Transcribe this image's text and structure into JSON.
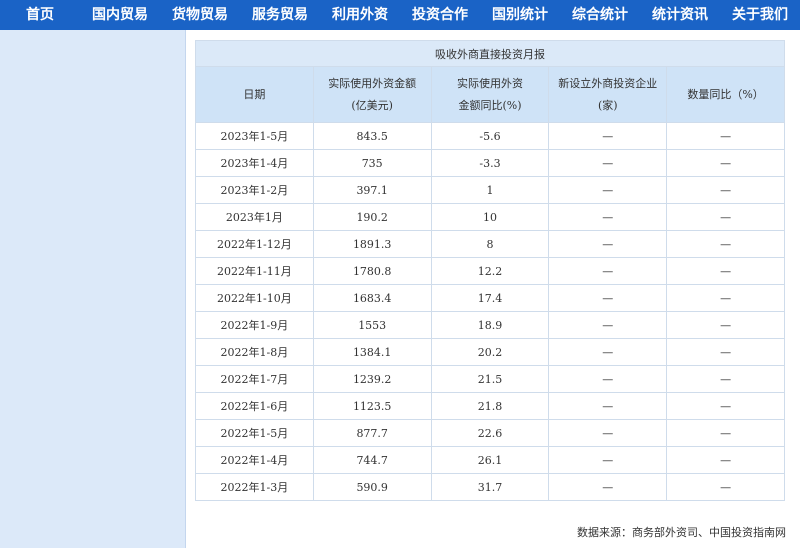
{
  "nav": {
    "items": [
      "首页",
      "国内贸易",
      "货物贸易",
      "服务贸易",
      "利用外资",
      "投资合作",
      "国别统计",
      "综合统计",
      "统计资讯",
      "关于我们"
    ]
  },
  "table": {
    "title": "吸收外商直接投资月报",
    "headers": [
      [
        "日期"
      ],
      [
        "实际使用外资金额",
        "(亿美元)"
      ],
      [
        "实际使用外资",
        "金额同比(%)"
      ],
      [
        "新设立外商投资企业",
        "(家)"
      ],
      [
        "数量同比（%）"
      ]
    ],
    "rows": [
      [
        "2023年1-5月",
        "843.5",
        "-5.6",
        "—",
        "—"
      ],
      [
        "2023年1-4月",
        "735",
        "-3.3",
        "—",
        "—"
      ],
      [
        "2023年1-2月",
        "397.1",
        "1",
        "—",
        "—"
      ],
      [
        "2023年1月",
        "190.2",
        "10",
        "—",
        "—"
      ],
      [
        "2022年1-12月",
        "1891.3",
        "8",
        "—",
        "—"
      ],
      [
        "2022年1-11月",
        "1780.8",
        "12.2",
        "—",
        "—"
      ],
      [
        "2022年1-10月",
        "1683.4",
        "17.4",
        "—",
        "—"
      ],
      [
        "2022年1-9月",
        "1553",
        "18.9",
        "—",
        "—"
      ],
      [
        "2022年1-8月",
        "1384.1",
        "20.2",
        "—",
        "—"
      ],
      [
        "2022年1-7月",
        "1239.2",
        "21.5",
        "—",
        "—"
      ],
      [
        "2022年1-6月",
        "1123.5",
        "21.8",
        "—",
        "—"
      ],
      [
        "2022年1-5月",
        "877.7",
        "22.6",
        "—",
        "—"
      ],
      [
        "2022年1-4月",
        "744.7",
        "26.1",
        "—",
        "—"
      ],
      [
        "2022年1-3月",
        "590.9",
        "31.7",
        "—",
        "—"
      ]
    ]
  },
  "footer": {
    "source": "数据来源：商务部外资司、中国投资指南网"
  }
}
